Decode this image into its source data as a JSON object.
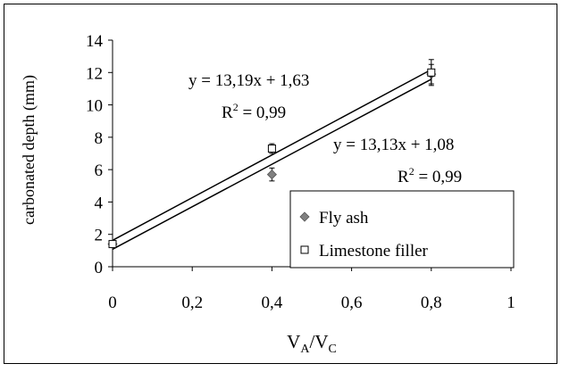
{
  "chart_data": {
    "type": "scatter",
    "title": "",
    "ylabel": "carbonated depth (mm)",
    "xlabel": {
      "base_a": "V",
      "sub_a": "A",
      "sep": "/",
      "base_c": "V",
      "sub_c": "C"
    },
    "xlim": [
      0,
      1
    ],
    "ylim": [
      0,
      14
    ],
    "x_ticks": [
      0,
      0.2,
      0.4,
      0.6,
      0.8,
      1
    ],
    "x_tick_labels": [
      "0",
      "0,2",
      "0,4",
      "0,6",
      "0,8",
      "1"
    ],
    "y_ticks": [
      0,
      2,
      4,
      6,
      8,
      10,
      12,
      14
    ],
    "y_tick_labels": [
      "0",
      "2",
      "4",
      "6",
      "8",
      "10",
      "12",
      "14"
    ],
    "grid": false,
    "legend_position": "bottom-right",
    "series": [
      {
        "name": "Fly ash",
        "marker": "diamond",
        "color": "#808080",
        "x": [
          0,
          0.4,
          0.8
        ],
        "y": [
          1.4,
          5.7,
          11.9
        ],
        "err": [
          0.2,
          0.4,
          0.6
        ],
        "trend": {
          "slope": 13.13,
          "intercept": 1.08
        },
        "equation_label": "y = 13,13x + 1,08",
        "r2_label": {
          "base": "R",
          "sup": "2",
          "rest": " = 0,99"
        }
      },
      {
        "name": "Limestone filler",
        "marker": "square",
        "color": "#000000",
        "x": [
          0,
          0.4,
          0.8
        ],
        "y": [
          1.4,
          7.3,
          12.0
        ],
        "err": [
          0.2,
          0.3,
          0.8
        ],
        "trend": {
          "slope": 13.19,
          "intercept": 1.63
        },
        "equation_label": "y = 13,19x + 1,63",
        "r2_label": {
          "base": "R",
          "sup": "2",
          "rest": " = 0,99"
        }
      }
    ]
  }
}
